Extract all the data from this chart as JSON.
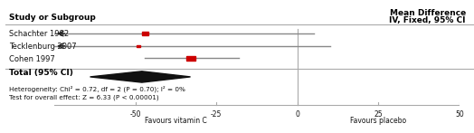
{
  "title_right": "Mean Difference",
  "subtitle_right": "IV, Fixed, 95% CI",
  "col_left_header": "Study or Subgroup",
  "studies": [
    {
      "name": "Schachter 1982",
      "mean": -47,
      "ci_lo": -100,
      "ci_hi": 5,
      "weight": 1.8,
      "arrow_left": true,
      "arrow_right": false
    },
    {
      "name": "Tecklenburg 2007",
      "mean": -49,
      "ci_lo": -100,
      "ci_hi": 10,
      "weight": 1.2,
      "arrow_left": true,
      "arrow_right": false
    },
    {
      "name": "Cohen 1997",
      "mean": -33,
      "ci_lo": -47,
      "ci_hi": -18,
      "weight": 2.8,
      "arrow_left": false,
      "arrow_right": false
    }
  ],
  "pooled": {
    "mean": -48,
    "ci_lo": -64,
    "ci_hi": -33
  },
  "total_label": "Total (95% CI)",
  "hetero_text": "Heterogeneity: Chi² = 0.72, df = 2 (P = 0.70); I² = 0%",
  "overall_text": "Test for overall effect: Z = 6.33 (P < 0.00001)",
  "xmin": -75,
  "xmax": 50,
  "xticks": [
    -50,
    -25,
    0,
    25,
    50
  ],
  "xlabel_left": "Favours vitamin C",
  "xlabel_right": "Favours placebo",
  "axis_color": "#aaaaaa",
  "line_color": "#888888",
  "square_color": "#cc0000",
  "diamond_color": "#111111",
  "arrow_color": "#222222",
  "text_color": "#111111",
  "bold_color": "#000000"
}
